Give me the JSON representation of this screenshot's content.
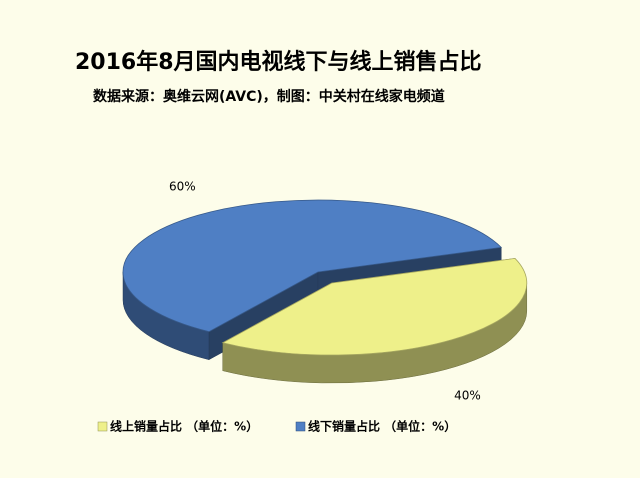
{
  "chart_data": {
    "type": "pie3d",
    "title": "2016年8月国内电视线下与线上销售占比",
    "subtitle": "数据来源：奥维云网(AVC)，制图：中关村在线家电频道",
    "categories": [
      "线上销量占比 （单位：%）",
      "线下销量占比 （单位：%）"
    ],
    "values": [
      40,
      60
    ],
    "value_labels": [
      "40%",
      "60%"
    ],
    "colors": [
      "#eef08a",
      "#4f7fc4"
    ],
    "legend": "bottom"
  }
}
